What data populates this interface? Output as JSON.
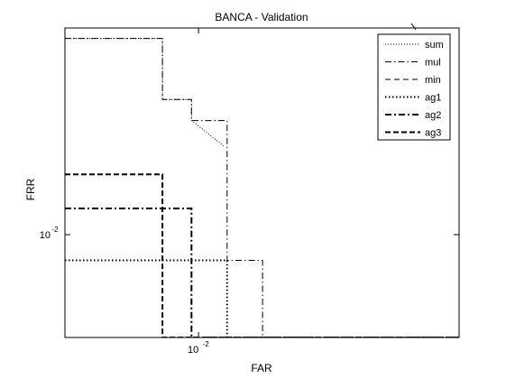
{
  "chart_data": {
    "type": "line",
    "title": "BANCA - Validation",
    "xlabel": "FAR",
    "ylabel": "FRR",
    "xscale": "log",
    "yscale": "log",
    "xlim": [
      0.0038,
      0.066
    ],
    "ylim": [
      0.0043,
      0.0545
    ],
    "x_ticks": [
      {
        "value": 0.01,
        "label": "10",
        "exp": "-2"
      }
    ],
    "y_ticks": [
      {
        "value": 0.01,
        "label": "10",
        "exp": "-2"
      }
    ],
    "grid": false,
    "legend_position": "top-right",
    "series": [
      {
        "name": "sum",
        "style": "dotted",
        "width": 1,
        "x": [
          0.0038,
          0.0077,
          0.0077,
          0.0095,
          0.0095,
          0.012
        ],
        "y": [
          0.05,
          0.05,
          0.0303,
          0.0303,
          0.0255,
          0.0207
        ]
      },
      {
        "name": "mul",
        "style": "dashdot",
        "width": 1,
        "x": [
          0.0038,
          0.0077,
          0.0077,
          0.0095,
          0.0095,
          0.0123,
          0.0123,
          0.0159,
          0.0159,
          0.066
        ],
        "y": [
          0.05,
          0.05,
          0.0303,
          0.0303,
          0.0255,
          0.0255,
          0.0081,
          0.0081,
          0.0043,
          0.0043
        ]
      },
      {
        "name": "min",
        "style": "dashed",
        "width": 1,
        "x": [
          0.0038,
          0.066
        ],
        "y": [
          0.0043,
          0.0043
        ]
      },
      {
        "name": "ag1",
        "style": "dotted",
        "width": 2,
        "x": [
          0.0038,
          0.0123,
          0.0123,
          0.066
        ],
        "y": [
          0.0081,
          0.0081,
          0.0043,
          0.0043
        ]
      },
      {
        "name": "ag2",
        "style": "dashdot",
        "width": 2,
        "x": [
          0.0038,
          0.0095,
          0.0095,
          0.066
        ],
        "y": [
          0.0124,
          0.0124,
          0.0043,
          0.0043
        ]
      },
      {
        "name": "ag3",
        "style": "dashed",
        "width": 2,
        "x": [
          0.0038,
          0.0077,
          0.0077,
          0.066
        ],
        "y": [
          0.0164,
          0.0164,
          0.0043,
          0.0043
        ]
      }
    ]
  }
}
